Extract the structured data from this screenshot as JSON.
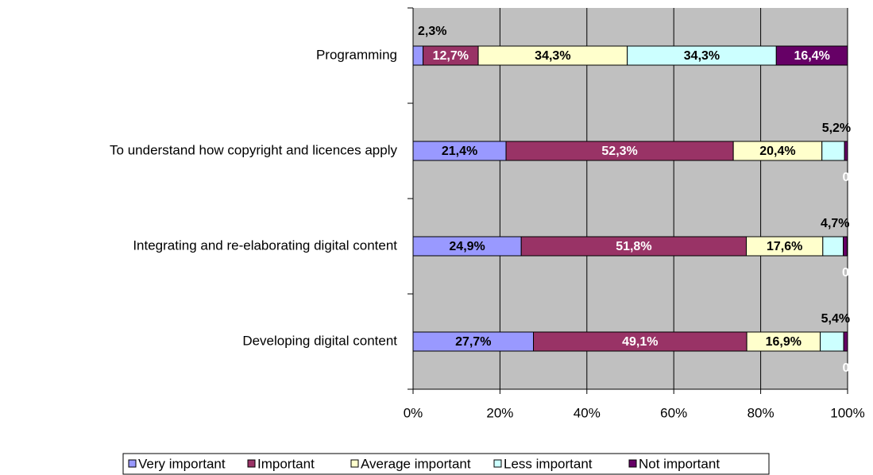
{
  "chart_data": {
    "type": "stacked_bar_horizontal",
    "categories": [
      "Programming",
      "To understand how copyright and licences apply",
      "Integrating and re-elaborating digital content",
      "Developing digital content"
    ],
    "series": [
      {
        "name": "Very important",
        "color": "#9999ff",
        "values": [
          2.3,
          21.4,
          24.9,
          27.7
        ],
        "value_labels": [
          "2,3%",
          "21,4%",
          "24,9%",
          "27,7%"
        ]
      },
      {
        "name": "Important",
        "color": "#993366",
        "values": [
          12.7,
          52.3,
          51.8,
          49.1
        ],
        "value_labels": [
          "12,7%",
          "52,3%",
          "51,8%",
          "49,1%"
        ]
      },
      {
        "name": "Average important",
        "color": "#ffffcc",
        "values": [
          34.3,
          20.4,
          17.6,
          16.9
        ],
        "value_labels": [
          "34,3%",
          "20,4%",
          "17,6%",
          "16,9%"
        ]
      },
      {
        "name": "Less important",
        "color": "#ccffff",
        "values": [
          34.3,
          5.2,
          4.7,
          5.4
        ],
        "value_labels": [
          "34,3%",
          "5,2%",
          "4,7%",
          "5,4%"
        ]
      },
      {
        "name": "Not important",
        "color": "#660066",
        "values": [
          16.4,
          0.7,
          0.9,
          0.9
        ],
        "value_labels": [
          "16,4%",
          "0,7%",
          "0,9%",
          "0,9%"
        ]
      }
    ],
    "xlim": [
      0,
      100
    ],
    "xticks": [
      {
        "value": 0,
        "label": "0%"
      },
      {
        "value": 20,
        "label": "20%"
      },
      {
        "value": 40,
        "label": "40%"
      },
      {
        "value": 60,
        "label": "60%"
      },
      {
        "value": 80,
        "label": "80%"
      },
      {
        "value": 100,
        "label": "100%"
      }
    ],
    "grid": true
  }
}
